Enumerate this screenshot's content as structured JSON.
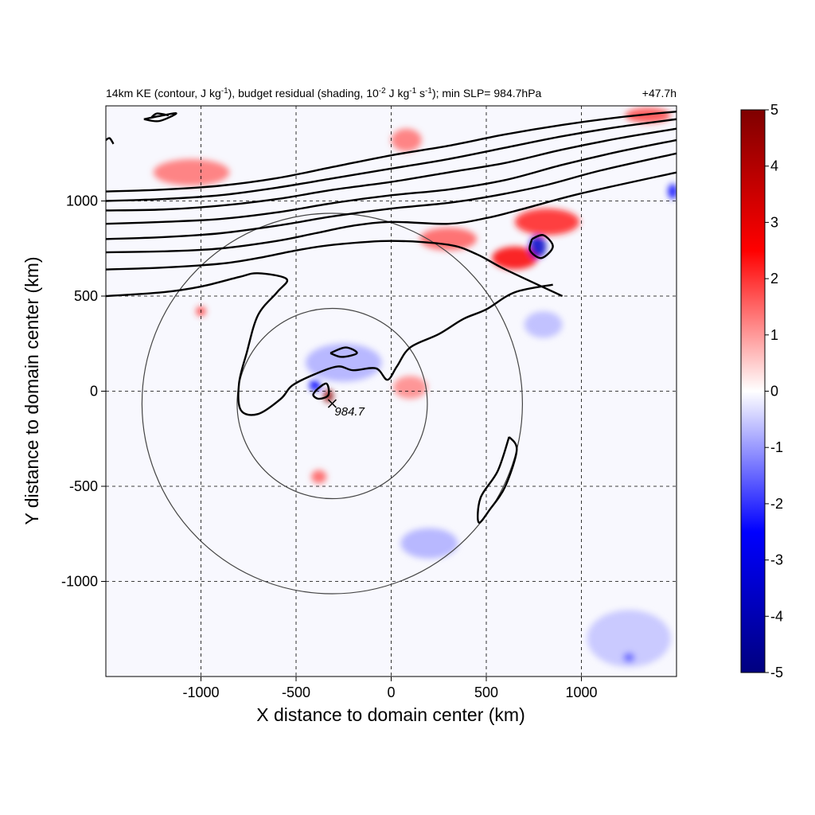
{
  "chart_data": {
    "type": "heatmap",
    "title_left": "14km KE (contour, J kg",
    "title_sup1": "-1",
    "title_mid1": "), budget residual (shading, 10",
    "title_sup2": "-2",
    "title_mid2": " J kg",
    "title_sup3": "-1",
    "title_mid3": " s",
    "title_sup4": "-1",
    "title_end": "); min SLP= 984.7hPa",
    "title_right": "+47.7h",
    "xlabel": "X distance to domain center (km)",
    "ylabel": "Y distance to domain center (km)",
    "xlim": [
      -1500,
      1500
    ],
    "ylim": [
      -1500,
      1500
    ],
    "xticks": [
      -1000,
      -500,
      0,
      500,
      1000
    ],
    "yticks": [
      1000,
      500,
      0,
      -500,
      -1000
    ],
    "xtick_labels": [
      "-1000",
      "-500",
      "0",
      "500",
      "1000"
    ],
    "ytick_labels": [
      "1000",
      "500",
      "0",
      "-500",
      "-1000"
    ],
    "grid": "dashed",
    "colorbar": {
      "min": -5,
      "max": 5,
      "ticks": [
        "5",
        "4",
        "3",
        "2",
        "1",
        "0",
        "-1",
        "-2",
        "-3",
        "-4",
        "-5"
      ],
      "colors": [
        "#00007f",
        "#0000ff",
        "#ffffff",
        "#ff0000",
        "#7f0000"
      ]
    },
    "min_slp_marker": {
      "x": -310,
      "y": -65,
      "label": "984.7"
    },
    "circles": [
      {
        "cx": -310,
        "cy": -65,
        "r": 500
      },
      {
        "cx": -310,
        "cy": -65,
        "r": 1000
      }
    ],
    "ke_contours": [
      [
        [
          -1500,
          1050
        ],
        [
          -1200,
          1060
        ],
        [
          -900,
          1080
        ],
        [
          -600,
          1120
        ],
        [
          -300,
          1180
        ],
        [
          0,
          1240
        ],
        [
          300,
          1290
        ],
        [
          600,
          1350
        ],
        [
          900,
          1400
        ],
        [
          1200,
          1440
        ],
        [
          1500,
          1470
        ]
      ],
      [
        [
          -1500,
          1000
        ],
        [
          -1200,
          1010
        ],
        [
          -900,
          1030
        ],
        [
          -600,
          1070
        ],
        [
          -300,
          1120
        ],
        [
          0,
          1170
        ],
        [
          300,
          1220
        ],
        [
          600,
          1280
        ],
        [
          900,
          1340
        ],
        [
          1200,
          1390
        ],
        [
          1500,
          1430
        ]
      ],
      [
        [
          -1500,
          950
        ],
        [
          -1200,
          955
        ],
        [
          -900,
          975
        ],
        [
          -600,
          1010
        ],
        [
          -300,
          1060
        ],
        [
          0,
          1100
        ],
        [
          300,
          1150
        ],
        [
          600,
          1200
        ],
        [
          900,
          1270
        ],
        [
          1200,
          1330
        ],
        [
          1500,
          1380
        ]
      ],
      [
        [
          -1500,
          880
        ],
        [
          -1200,
          890
        ],
        [
          -900,
          905
        ],
        [
          -600,
          940
        ],
        [
          -300,
          990
        ],
        [
          0,
          1030
        ],
        [
          300,
          1060
        ],
        [
          600,
          1110
        ],
        [
          900,
          1190
        ],
        [
          1200,
          1260
        ],
        [
          1500,
          1320
        ]
      ],
      [
        [
          -1500,
          800
        ],
        [
          -1200,
          810
        ],
        [
          -900,
          830
        ],
        [
          -600,
          870
        ],
        [
          -300,
          920
        ],
        [
          0,
          960
        ],
        [
          300,
          990
        ],
        [
          500,
          1020
        ],
        [
          800,
          1080
        ],
        [
          1100,
          1160
        ],
        [
          1500,
          1250
        ]
      ],
      [
        [
          -1500,
          730
        ],
        [
          -1200,
          735
        ],
        [
          -900,
          750
        ],
        [
          -600,
          790
        ],
        [
          -400,
          830
        ],
        [
          -200,
          870
        ],
        [
          0,
          890
        ],
        [
          300,
          880
        ],
        [
          500,
          910
        ],
        [
          700,
          960
        ],
        [
          1000,
          1040
        ],
        [
          1500,
          1150
        ]
      ],
      [
        [
          -1500,
          640
        ],
        [
          -1200,
          650
        ],
        [
          -900,
          670
        ],
        [
          -700,
          700
        ],
        [
          -500,
          740
        ],
        [
          -300,
          770
        ],
        [
          0,
          790
        ],
        [
          300,
          770
        ],
        [
          450,
          720
        ],
        [
          600,
          640
        ],
        [
          900,
          500
        ]
      ],
      [
        [
          -1500,
          500
        ],
        [
          -1200,
          520
        ],
        [
          -1000,
          550
        ],
        [
          -800,
          600
        ],
        [
          -700,
          620
        ],
        [
          -550,
          590
        ],
        [
          -600,
          520
        ],
        [
          -700,
          400
        ],
        [
          -760,
          200
        ],
        [
          -800,
          40
        ],
        [
          -790,
          -100
        ],
        [
          -700,
          -120
        ],
        [
          -580,
          -40
        ],
        [
          -520,
          30
        ],
        [
          -400,
          90
        ],
        [
          -280,
          130
        ],
        [
          -200,
          110
        ],
        [
          -80,
          120
        ],
        [
          -20,
          60
        ],
        [
          30,
          130
        ],
        [
          100,
          230
        ],
        [
          250,
          300
        ],
        [
          380,
          380
        ],
        [
          500,
          430
        ],
        [
          650,
          520
        ],
        [
          850,
          560
        ]
      ],
      [
        [
          -1500,
          1320
        ],
        [
          -1480,
          1330
        ],
        [
          -1460,
          1300
        ]
      ],
      [
        [
          -1300,
          1430
        ],
        [
          -1200,
          1450
        ],
        [
          -1130,
          1460
        ],
        [
          -1220,
          1420
        ],
        [
          -1300,
          1430
        ]
      ],
      [
        [
          -390,
          10
        ],
        [
          -340,
          40
        ],
        [
          -330,
          -20
        ],
        [
          -380,
          -40
        ],
        [
          -410,
          -20
        ],
        [
          -390,
          10
        ]
      ],
      [
        [
          620,
          -240
        ],
        [
          660,
          -310
        ],
        [
          600,
          -500
        ],
        [
          520,
          -620
        ],
        [
          460,
          -690
        ],
        [
          470,
          -560
        ],
        [
          560,
          -420
        ],
        [
          620,
          -240
        ]
      ],
      [
        [
          740,
          800
        ],
        [
          800,
          820
        ],
        [
          850,
          760
        ],
        [
          790,
          700
        ],
        [
          730,
          740
        ],
        [
          740,
          800
        ]
      ],
      [
        [
          -1170,
          1450
        ],
        [
          -1230,
          1460
        ],
        [
          -1260,
          1440
        ]
      ],
      [
        [
          -320,
          200
        ],
        [
          -240,
          230
        ],
        [
          -180,
          200
        ],
        [
          -260,
          180
        ],
        [
          -320,
          200
        ]
      ]
    ],
    "positive_residual_patches": [
      {
        "x": 80,
        "y": 1320,
        "rx": 80,
        "ry": 60,
        "v": 1.4
      },
      {
        "x": 820,
        "y": 890,
        "rx": 170,
        "ry": 70,
        "v": 2.2
      },
      {
        "x": 650,
        "y": 700,
        "rx": 120,
        "ry": 60,
        "v": 2.6
      },
      {
        "x": 300,
        "y": 800,
        "rx": 150,
        "ry": 60,
        "v": 1.6
      },
      {
        "x": -330,
        "y": -25,
        "rx": 25,
        "ry": 35,
        "v": 4.8
      },
      {
        "x": 100,
        "y": 20,
        "rx": 90,
        "ry": 60,
        "v": 1.2
      },
      {
        "x": -1050,
        "y": 1150,
        "rx": 200,
        "ry": 70,
        "v": 1.4
      },
      {
        "x": -1000,
        "y": 420,
        "rx": 25,
        "ry": 25,
        "v": 2.0
      },
      {
        "x": -380,
        "y": -450,
        "rx": 40,
        "ry": 35,
        "v": 1.6
      },
      {
        "x": 1350,
        "y": 1450,
        "rx": 120,
        "ry": 40,
        "v": 1.8
      }
    ],
    "negative_residual_patches": [
      {
        "x": 770,
        "y": 760,
        "rx": 45,
        "ry": 60,
        "v": -3.6
      },
      {
        "x": 1480,
        "y": 1050,
        "rx": 25,
        "ry": 40,
        "v": -2.5
      },
      {
        "x": -400,
        "y": 30,
        "rx": 30,
        "ry": 30,
        "v": -2.5
      },
      {
        "x": 200,
        "y": -800,
        "rx": 150,
        "ry": 80,
        "v": -0.8
      },
      {
        "x": 800,
        "y": 350,
        "rx": 100,
        "ry": 70,
        "v": -0.7
      },
      {
        "x": 1250,
        "y": -1300,
        "rx": 220,
        "ry": 150,
        "v": -0.6
      },
      {
        "x": -250,
        "y": 150,
        "rx": 200,
        "ry": 100,
        "v": -0.8
      },
      {
        "x": 1250,
        "y": -1400,
        "rx": 30,
        "ry": 25,
        "v": -1.6
      }
    ]
  }
}
